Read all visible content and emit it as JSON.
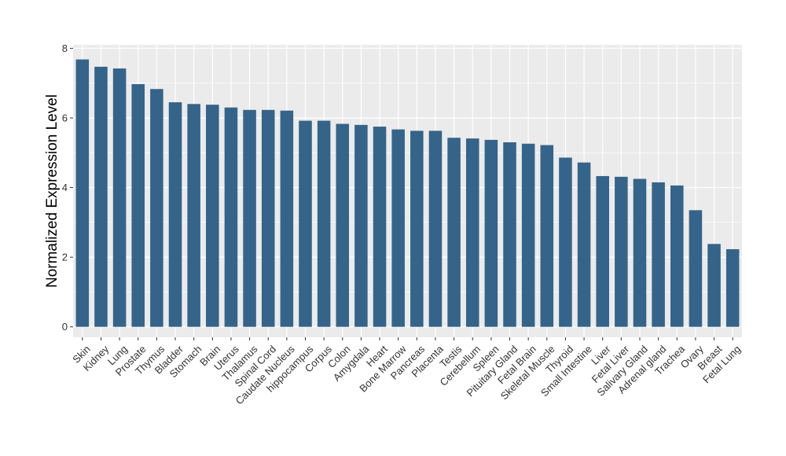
{
  "chart_data": {
    "type": "bar",
    "title": "",
    "xlabel": "",
    "ylabel": "Normalized Expression Level",
    "ylim": [
      -0.3,
      8.1
    ],
    "yticks": [
      0,
      2,
      4,
      6,
      8
    ],
    "grid": true,
    "colors": {
      "bar": "#35648a",
      "panel": "#ebebeb",
      "grid": "#ffffff"
    },
    "categories": [
      "Skin",
      "Kidney",
      "Lung",
      "Prostate",
      "Thymus",
      "Bladder",
      "Stomach",
      "Brain",
      "Uterus",
      "Thalamus",
      "Spinal Cord",
      "Caudate Nucleus",
      "hippocampus",
      "Corpus",
      "Colon",
      "Amygdala",
      "Heart",
      "Bone Marrow",
      "Pancreas",
      "Placenta",
      "Testis",
      "Cerebellum",
      "Spleen",
      "Pituitary Gland",
      "Fetal Brain",
      "Skeletal Muscle",
      "Thyroid",
      "Small Intestine",
      "Liver",
      "Fetal Liver",
      "Salivary Gland",
      "Adrenal gland",
      "Trachea",
      "Ovary",
      "Breast",
      "Fetal Lung"
    ],
    "values": [
      7.68,
      7.47,
      7.42,
      6.97,
      6.83,
      6.45,
      6.4,
      6.38,
      6.3,
      6.23,
      6.23,
      6.21,
      5.92,
      5.92,
      5.83,
      5.8,
      5.75,
      5.67,
      5.63,
      5.63,
      5.43,
      5.41,
      5.37,
      5.3,
      5.26,
      5.22,
      4.86,
      4.72,
      4.33,
      4.31,
      4.25,
      4.15,
      4.06,
      3.35,
      2.38,
      2.23
    ]
  }
}
